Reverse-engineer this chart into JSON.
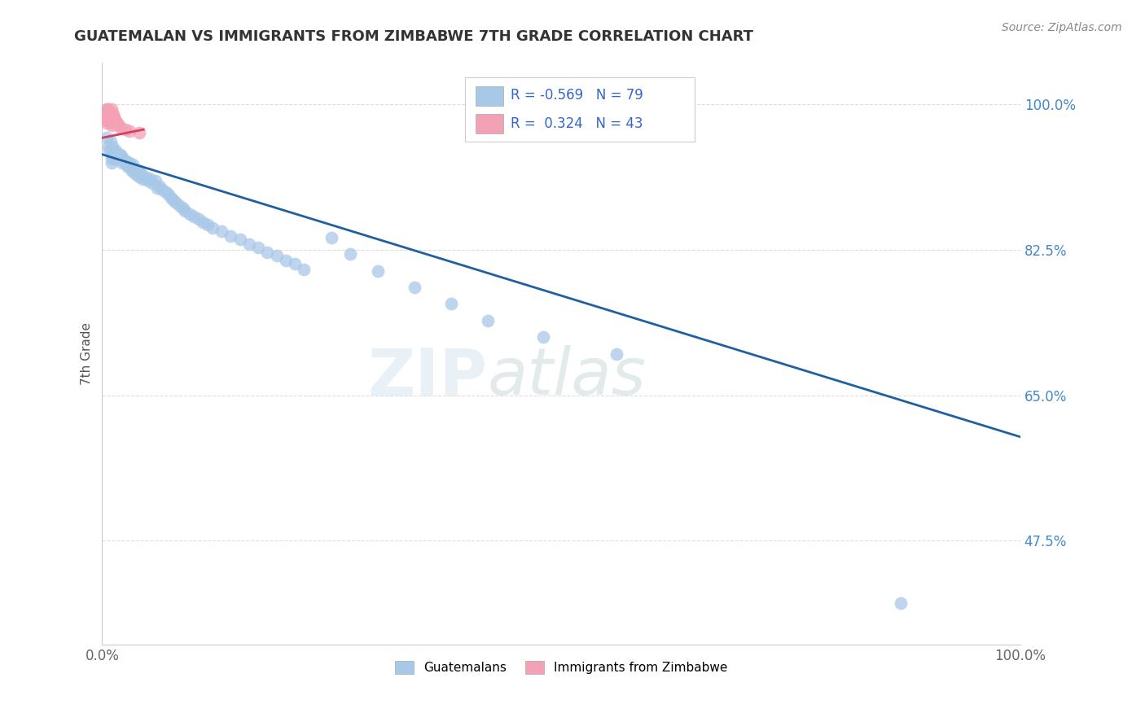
{
  "title": "GUATEMALAN VS IMMIGRANTS FROM ZIMBABWE 7TH GRADE CORRELATION CHART",
  "source_text": "Source: ZipAtlas.com",
  "ylabel": "7th Grade",
  "xlim": [
    0.0,
    1.0
  ],
  "ylim": [
    0.35,
    1.05
  ],
  "x_ticks": [
    0.0,
    1.0
  ],
  "x_tick_labels": [
    "0.0%",
    "100.0%"
  ],
  "y_ticks": [
    0.475,
    0.65,
    0.825,
    1.0
  ],
  "y_tick_labels": [
    "47.5%",
    "65.0%",
    "82.5%",
    "100.0%"
  ],
  "blue_color": "#a8c8e8",
  "pink_color": "#f4a0b5",
  "line_blue_color": "#2060a0",
  "line_pink_color": "#d04060",
  "legend_R_blue": "-0.569",
  "legend_N_blue": "79",
  "legend_R_pink": "0.324",
  "legend_N_pink": "43",
  "blue_scatter_x": [
    0.005,
    0.007,
    0.008,
    0.009,
    0.01,
    0.01,
    0.01,
    0.011,
    0.012,
    0.012,
    0.013,
    0.014,
    0.015,
    0.015,
    0.016,
    0.017,
    0.018,
    0.019,
    0.02,
    0.02,
    0.021,
    0.022,
    0.023,
    0.025,
    0.026,
    0.027,
    0.028,
    0.03,
    0.031,
    0.032,
    0.033,
    0.035,
    0.036,
    0.038,
    0.04,
    0.041,
    0.043,
    0.045,
    0.048,
    0.05,
    0.053,
    0.055,
    0.058,
    0.06,
    0.063,
    0.065,
    0.07,
    0.072,
    0.075,
    0.078,
    0.08,
    0.085,
    0.088,
    0.09,
    0.095,
    0.1,
    0.105,
    0.11,
    0.115,
    0.12,
    0.13,
    0.14,
    0.15,
    0.16,
    0.17,
    0.18,
    0.19,
    0.2,
    0.21,
    0.22,
    0.25,
    0.27,
    0.3,
    0.34,
    0.38,
    0.42,
    0.48,
    0.56,
    0.87
  ],
  "blue_scatter_y": [
    0.96,
    0.95,
    0.945,
    0.955,
    0.94,
    0.935,
    0.93,
    0.95,
    0.945,
    0.94,
    0.935,
    0.942,
    0.945,
    0.938,
    0.94,
    0.935,
    0.94,
    0.938,
    0.94,
    0.935,
    0.938,
    0.93,
    0.935,
    0.93,
    0.932,
    0.928,
    0.925,
    0.93,
    0.925,
    0.92,
    0.928,
    0.918,
    0.922,
    0.915,
    0.92,
    0.912,
    0.916,
    0.91,
    0.912,
    0.908,
    0.91,
    0.905,
    0.908,
    0.9,
    0.902,
    0.898,
    0.895,
    0.892,
    0.888,
    0.885,
    0.882,
    0.878,
    0.875,
    0.872,
    0.868,
    0.865,
    0.862,
    0.858,
    0.855,
    0.852,
    0.848,
    0.842,
    0.838,
    0.832,
    0.828,
    0.822,
    0.818,
    0.812,
    0.808,
    0.802,
    0.84,
    0.82,
    0.8,
    0.78,
    0.76,
    0.74,
    0.72,
    0.7,
    0.4
  ],
  "pink_scatter_x": [
    0.003,
    0.003,
    0.004,
    0.004,
    0.004,
    0.005,
    0.005,
    0.005,
    0.005,
    0.005,
    0.006,
    0.006,
    0.006,
    0.006,
    0.007,
    0.007,
    0.007,
    0.007,
    0.008,
    0.008,
    0.008,
    0.009,
    0.009,
    0.009,
    0.01,
    0.01,
    0.01,
    0.01,
    0.01,
    0.01,
    0.01,
    0.011,
    0.011,
    0.012,
    0.013,
    0.014,
    0.015,
    0.016,
    0.018,
    0.02,
    0.025,
    0.03,
    0.04
  ],
  "pink_scatter_y": [
    0.99,
    0.985,
    0.992,
    0.988,
    0.984,
    0.995,
    0.99,
    0.986,
    0.982,
    0.978,
    0.995,
    0.99,
    0.985,
    0.98,
    0.992,
    0.988,
    0.984,
    0.98,
    0.99,
    0.986,
    0.982,
    0.988,
    0.984,
    0.98,
    0.995,
    0.99,
    0.988,
    0.985,
    0.982,
    0.978,
    0.975,
    0.99,
    0.986,
    0.988,
    0.985,
    0.982,
    0.98,
    0.978,
    0.975,
    0.972,
    0.97,
    0.968,
    0.966
  ],
  "blue_line_x": [
    0.0,
    1.0
  ],
  "blue_line_y": [
    0.94,
    0.6
  ],
  "pink_line_x": [
    0.0,
    0.045
  ],
  "pink_line_y": [
    0.96,
    0.97
  ],
  "grid_color": "#dddddd",
  "background_color": "#ffffff",
  "tick_color_right": "#4488cc",
  "tick_color_bottom": "#666666"
}
